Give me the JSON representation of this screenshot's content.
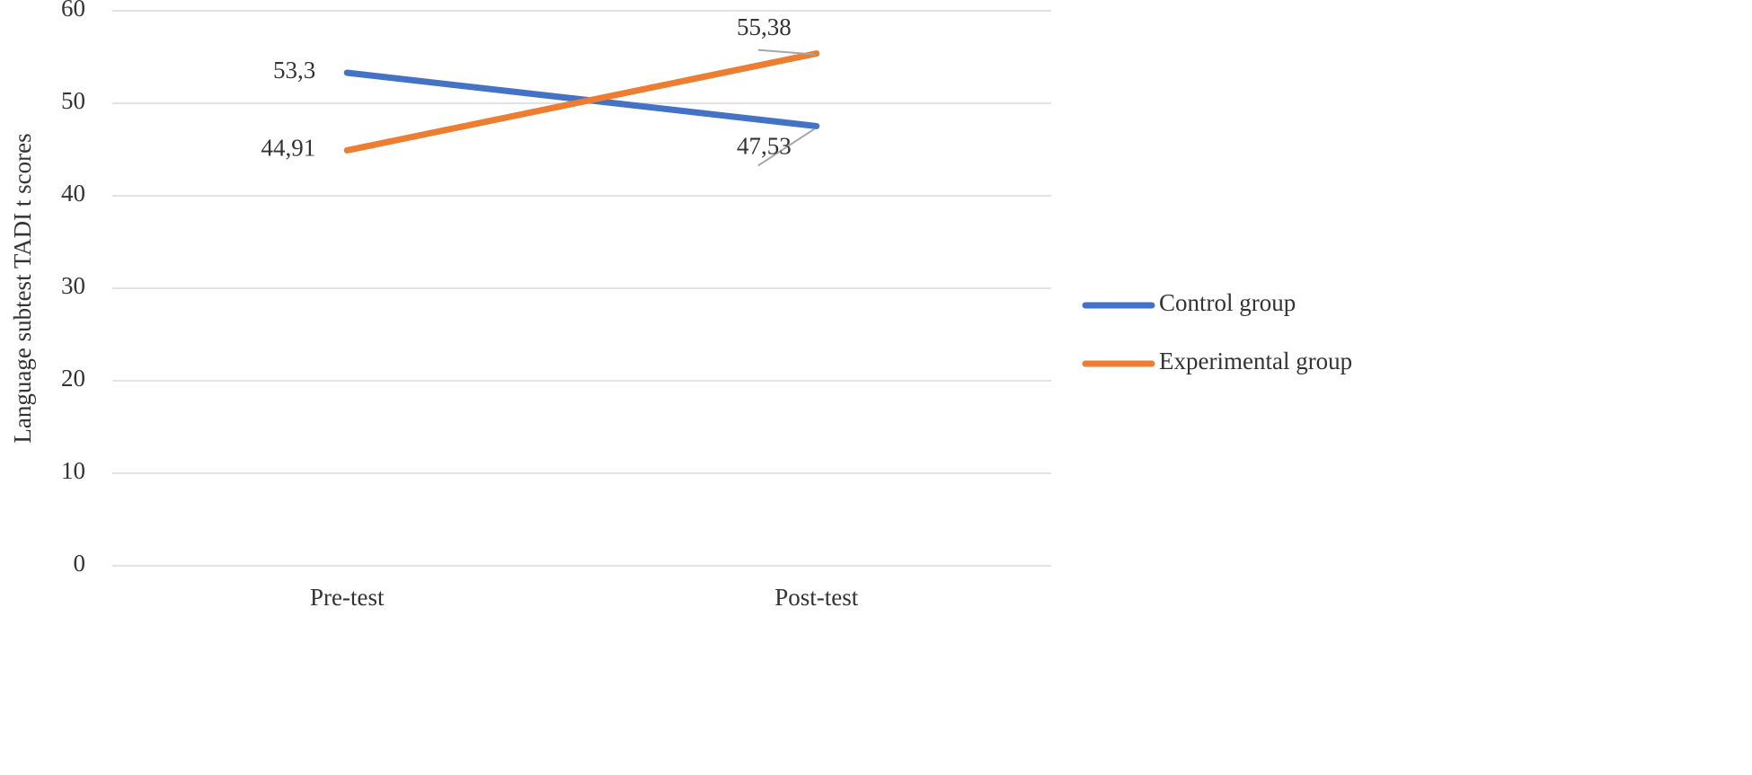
{
  "chart_data": {
    "type": "line",
    "y_label": "Language subtest TADI t scores",
    "categories": [
      "Pre-test",
      "Post-test"
    ],
    "series": [
      {
        "name": "Control group",
        "color": "#4472c4",
        "values": [
          53.3,
          47.53
        ],
        "value_labels": [
          "53,3",
          "47,53"
        ]
      },
      {
        "name": "Experimental group",
        "color": "#ed7d31",
        "values": [
          44.91,
          55.38
        ],
        "value_labels": [
          "44,91",
          "55,38"
        ]
      }
    ],
    "ylim": [
      0,
      60
    ],
    "yticks": [
      0,
      10,
      20,
      30,
      40,
      50,
      60
    ],
    "grid": true,
    "legend": "right"
  }
}
